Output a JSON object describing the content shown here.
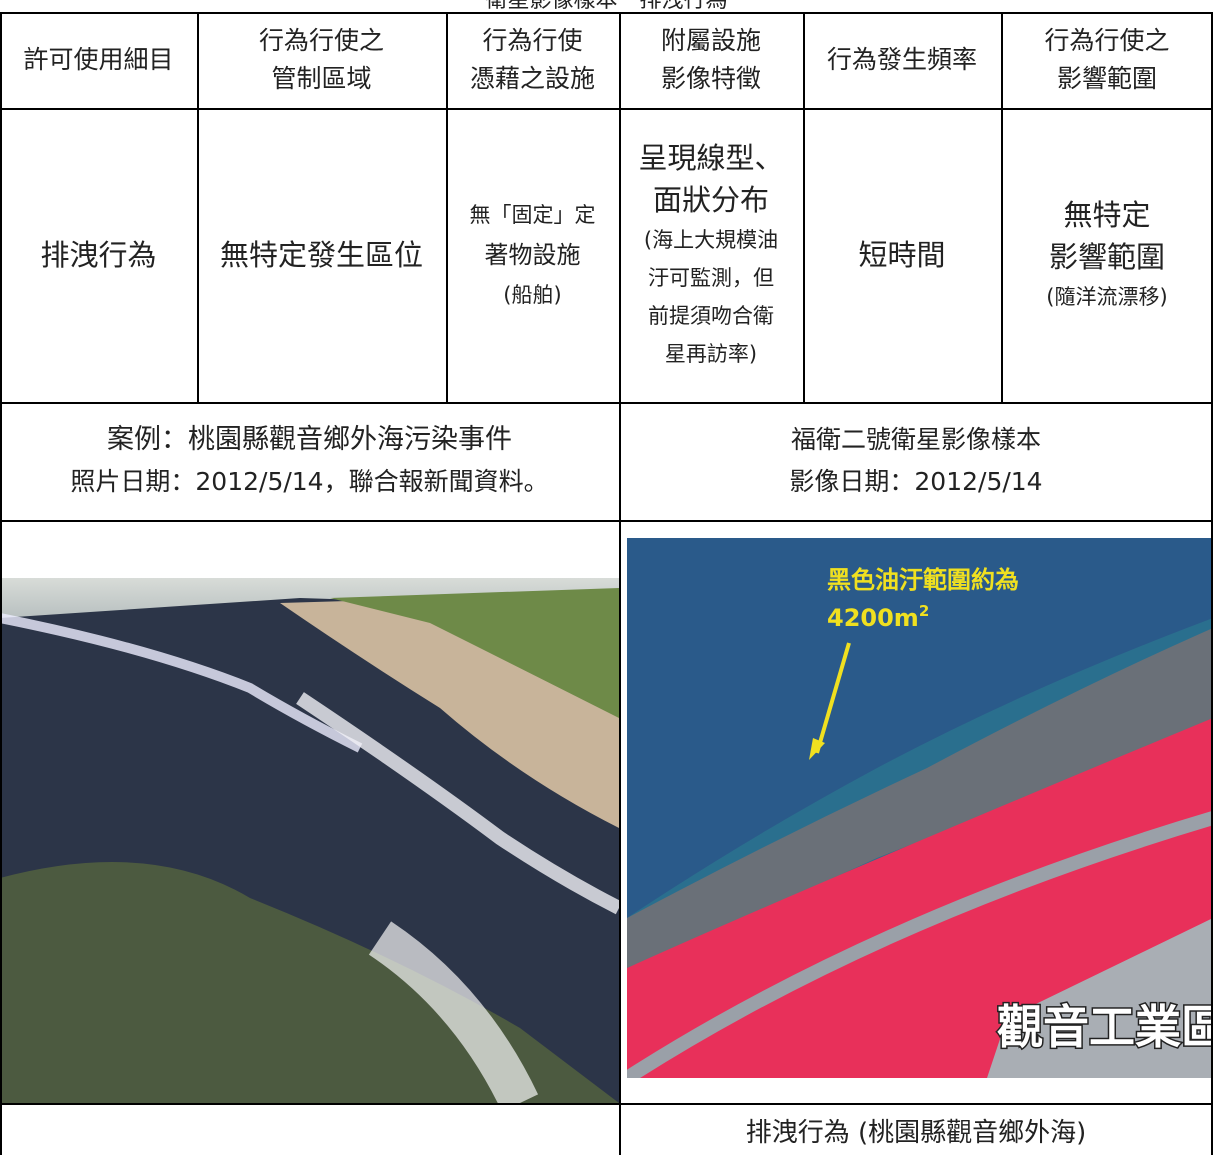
{
  "title": "衛星影像樣本－排洩行為",
  "table": {
    "header": [
      [
        "許可使用細目"
      ],
      [
        "行為行使之",
        "管制區域"
      ],
      [
        "行為行使",
        "憑藉之設施"
      ],
      [
        "附屬設施",
        "影像特徵"
      ],
      [
        "行為發生頻率"
      ],
      [
        "行為行使之",
        "影響範圍"
      ]
    ],
    "row": [
      [
        "排洩行為"
      ],
      [
        "無特定發生區位"
      ],
      [
        "無「固定」定",
        "著物設施",
        "(船舶)"
      ],
      [
        "呈現線型、",
        "面狀分布",
        "(海上大規模油",
        "汙可監測，但",
        "前提須吻合衛",
        "星再訪率)"
      ],
      [
        "短時間"
      ],
      [
        "無特定",
        "影響範圍",
        "(隨洋流漂移)"
      ]
    ]
  },
  "case": {
    "left": [
      "案例：桃園縣觀音鄉外海污染事件",
      "照片日期：2012/5/14，聯合報新聞資料。"
    ],
    "right": [
      "福衛二號衛星影像樣本",
      "影像日期：2012/5/14"
    ]
  },
  "satellite_image": {
    "annotation": [
      "黑色油汙範圍約為",
      "4200m",
      "2"
    ],
    "area_label": "觀音工業區"
  },
  "caption": "排洩行為 (桃園縣觀音鄉外海)"
}
